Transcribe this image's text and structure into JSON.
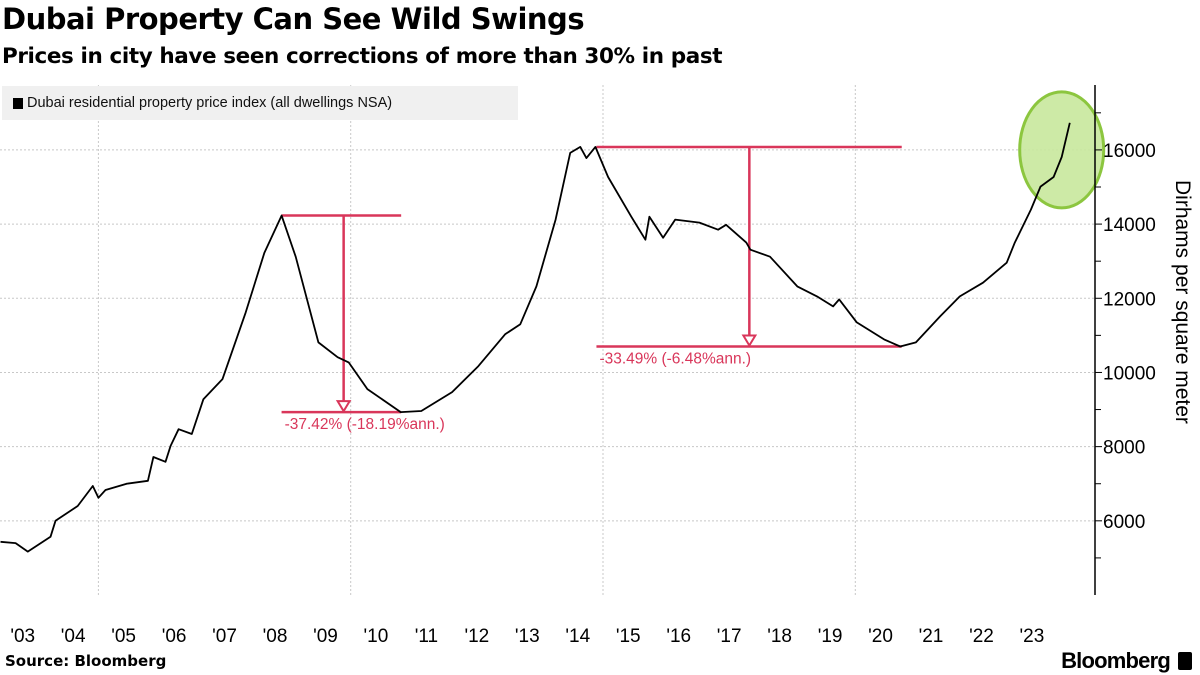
{
  "header": {
    "title": "Dubai Property Can See Wild Swings",
    "subtitle": "Prices in city have seen corrections of more than 30% in past"
  },
  "footer": {
    "source": "Source: Bloomberg",
    "logo": "Bloomberg"
  },
  "colors": {
    "line": "#000000",
    "annotation": "#d9365a",
    "highlight_fill": "#c8e89c",
    "highlight_stroke": "#8cc63f",
    "grid": "#c8c8c8"
  },
  "chart_data": {
    "type": "line",
    "title": "Dubai Property Can See Wild Swings",
    "subtitle": "Prices in city have seen corrections of more than 30% in past",
    "xlabel": "",
    "ylabel": "Dirhams per square meter",
    "xlim": [
      2003.05,
      2024.75
    ],
    "ylim": [
      4000,
      17750
    ],
    "x_ticks": [
      "'03",
      "'04",
      "'05",
      "'06",
      "'07",
      "'08",
      "'09",
      "'10",
      "'11",
      "'12",
      "'13",
      "'14",
      "'15",
      "'16",
      "'17",
      "'18",
      "'19",
      "'20",
      "'21",
      "'22",
      "'23"
    ],
    "x_tick_years": [
      2003,
      2004,
      2005,
      2006,
      2007,
      2008,
      2009,
      2010,
      2011,
      2012,
      2013,
      2014,
      2015,
      2016,
      2017,
      2018,
      2019,
      2020,
      2021,
      2022,
      2023
    ],
    "x_grid_years": [
      2005,
      2010,
      2015,
      2020
    ],
    "y_ticks": [
      "6000",
      "8000",
      "10000",
      "12000",
      "14000",
      "16000"
    ],
    "y_tick_values": [
      6000,
      8000,
      10000,
      12000,
      14000,
      16000
    ],
    "y_minor_tick_values": [
      5000,
      7000,
      9000,
      11000,
      13000,
      15000,
      17000
    ],
    "grid": true,
    "legend": {
      "position": "top-left",
      "entries": [
        "Dubai residential property price index (all dwellings NSA)"
      ]
    },
    "series": [
      {
        "name": "Dubai residential property price index (all dwellings NSA)",
        "points": [
          [
            2003.06,
            5435
          ],
          [
            2003.36,
            5400
          ],
          [
            2003.6,
            5170
          ],
          [
            2004.05,
            5570
          ],
          [
            2004.15,
            6000
          ],
          [
            2004.59,
            6400
          ],
          [
            2004.89,
            6940
          ],
          [
            2005.0,
            6620
          ],
          [
            2005.14,
            6830
          ],
          [
            2005.56,
            7000
          ],
          [
            2005.98,
            7080
          ],
          [
            2006.09,
            7720
          ],
          [
            2006.33,
            7590
          ],
          [
            2006.43,
            8020
          ],
          [
            2006.59,
            8470
          ],
          [
            2006.85,
            8340
          ],
          [
            2007.08,
            9280
          ],
          [
            2007.46,
            9820
          ],
          [
            2007.92,
            11620
          ],
          [
            2008.29,
            13230
          ],
          [
            2008.63,
            14230
          ],
          [
            2008.91,
            13120
          ],
          [
            2009.36,
            10810
          ],
          [
            2009.74,
            10410
          ],
          [
            2009.96,
            10270
          ],
          [
            2010.33,
            9550
          ],
          [
            2010.99,
            8930
          ],
          [
            2011.4,
            8960
          ],
          [
            2012.01,
            9470
          ],
          [
            2012.53,
            10170
          ],
          [
            2013.06,
            11030
          ],
          [
            2013.36,
            11300
          ],
          [
            2013.68,
            12320
          ],
          [
            2014.06,
            14120
          ],
          [
            2014.35,
            15920
          ],
          [
            2014.55,
            16080
          ],
          [
            2014.67,
            15780
          ],
          [
            2014.85,
            16080
          ],
          [
            2015.1,
            15270
          ],
          [
            2015.56,
            14200
          ],
          [
            2015.84,
            13580
          ],
          [
            2015.92,
            14200
          ],
          [
            2016.19,
            13630
          ],
          [
            2016.43,
            14120
          ],
          [
            2016.91,
            14040
          ],
          [
            2017.28,
            13850
          ],
          [
            2017.44,
            13980
          ],
          [
            2017.84,
            13500
          ],
          [
            2017.92,
            13310
          ],
          [
            2018.31,
            13120
          ],
          [
            2018.85,
            12320
          ],
          [
            2019.24,
            12050
          ],
          [
            2019.56,
            11780
          ],
          [
            2019.68,
            11970
          ],
          [
            2020.03,
            11350
          ],
          [
            2020.57,
            10890
          ],
          [
            2020.89,
            10700
          ],
          [
            2021.2,
            10810
          ],
          [
            2021.68,
            11510
          ],
          [
            2022.07,
            12050
          ],
          [
            2022.53,
            12420
          ],
          [
            2023.0,
            12960
          ],
          [
            2023.16,
            13500
          ],
          [
            2023.48,
            14390
          ],
          [
            2023.67,
            15010
          ],
          [
            2023.93,
            15270
          ],
          [
            2024.09,
            15810
          ],
          [
            2024.25,
            16730
          ]
        ]
      }
    ],
    "annotations": [
      {
        "type": "drawdown",
        "x_start": 2008.63,
        "x_end": 2011.0,
        "arrow_x": 2009.86,
        "y_top": 14230,
        "y_bottom": 8930,
        "label": "-37.42% (-18.19%ann.)"
      },
      {
        "type": "drawdown",
        "x_start": 2014.87,
        "x_end": 2020.92,
        "arrow_x": 2017.9,
        "y_top": 16080,
        "y_bottom": 10700,
        "label": "-33.49% (-6.48%ann.)"
      },
      {
        "type": "highlight-ellipse",
        "x_center": 2024.09,
        "y_center": 16000
      }
    ]
  }
}
